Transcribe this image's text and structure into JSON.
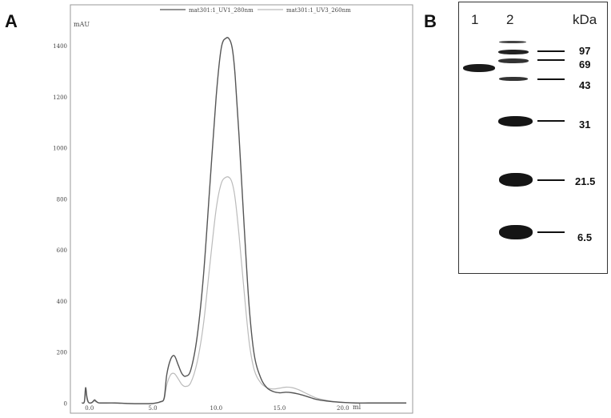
{
  "panel_a_label": "A",
  "panel_b_label": "B",
  "chart_data": {
    "type": "line",
    "ylabel": "mAU",
    "xlabel": "ml",
    "xlim": [
      -1.5,
      25.5
    ],
    "ylim": [
      -40,
      1560
    ],
    "x_ticks": [
      0.0,
      5.0,
      10.0,
      15.0,
      20.0
    ],
    "x_tick_labels": [
      "0.0",
      "5.0",
      "10.0",
      "15.0",
      "20.0"
    ],
    "y_ticks": [
      0,
      200,
      400,
      600,
      800,
      1000,
      1200,
      1400
    ],
    "y_tick_labels": [
      "0",
      "200",
      "400",
      "600",
      "800",
      "1000",
      "1200",
      "1400"
    ],
    "series": [
      {
        "name": "mat301:1_UV1_280nm",
        "color": "#555555",
        "x": [
          -0.6,
          -0.4,
          -0.3,
          -0.2,
          -0.1,
          0.0,
          0.2,
          0.4,
          0.5,
          0.7,
          1.0,
          2.0,
          3.0,
          4.0,
          5.0,
          5.6,
          5.9,
          6.1,
          6.4,
          6.7,
          7.0,
          7.3,
          7.6,
          8.0,
          8.5,
          9.0,
          9.5,
          10.0,
          10.4,
          10.8,
          11.1,
          11.3,
          11.5,
          11.8,
          12.2,
          12.6,
          13.0,
          13.5,
          14.0,
          14.5,
          15.0,
          15.5,
          16.0,
          16.5,
          17.0,
          17.5,
          18.0,
          19.0,
          20.0,
          21.0,
          22.0,
          23.0,
          25.0
        ],
        "y": [
          0,
          5,
          60,
          25,
          5,
          0,
          2,
          12,
          8,
          1,
          0,
          0,
          -2,
          -3,
          -2,
          5,
          20,
          110,
          170,
          185,
          150,
          115,
          105,
          130,
          260,
          500,
          850,
          1200,
          1390,
          1430,
          1420,
          1380,
          1280,
          1050,
          700,
          380,
          190,
          100,
          60,
          45,
          40,
          42,
          40,
          35,
          28,
          20,
          13,
          6,
          2,
          0,
          0,
          0,
          0
        ]
      },
      {
        "name": "mat301:1_UV3_260nm",
        "color": "#bbbbbb",
        "x": [
          -0.6,
          -0.4,
          -0.3,
          -0.2,
          -0.1,
          0.0,
          0.2,
          0.4,
          0.5,
          0.7,
          1.0,
          2.0,
          3.0,
          4.0,
          5.0,
          5.6,
          5.9,
          6.1,
          6.4,
          6.7,
          7.0,
          7.3,
          7.6,
          8.0,
          8.5,
          9.0,
          9.5,
          10.0,
          10.4,
          10.8,
          11.1,
          11.3,
          11.5,
          11.8,
          12.2,
          12.6,
          13.0,
          13.5,
          14.0,
          14.5,
          15.0,
          15.5,
          16.0,
          16.5,
          17.0,
          17.5,
          18.0,
          19.0,
          20.0,
          21.0,
          22.0,
          23.0,
          25.0
        ],
        "y": [
          0,
          3,
          40,
          15,
          3,
          0,
          1,
          8,
          5,
          1,
          0,
          0,
          -1,
          -2,
          -1,
          3,
          15,
          70,
          110,
          115,
          95,
          72,
          65,
          80,
          160,
          310,
          540,
          760,
          860,
          885,
          880,
          855,
          800,
          660,
          440,
          240,
          130,
          80,
          60,
          55,
          58,
          62,
          60,
          52,
          40,
          28,
          18,
          8,
          3,
          0,
          0,
          0,
          0
        ]
      }
    ]
  },
  "gel": {
    "lane_labels": [
      "1",
      "2"
    ],
    "unit_label": "kDa",
    "marker_labels": [
      "97",
      "69",
      "43",
      "31",
      "21.5",
      "6.5"
    ]
  }
}
